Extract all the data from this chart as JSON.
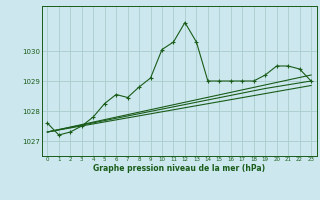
{
  "title": "Graphe pression niveau de la mer (hPa)",
  "bg_color": "#cce8ee",
  "grid_color": "#aacccc",
  "line_color": "#1a5c1a",
  "xlim": [
    -0.5,
    23.5
  ],
  "ylim": [
    1026.5,
    1031.5
  ],
  "yticks": [
    1027,
    1028,
    1029,
    1030
  ],
  "xticks": [
    0,
    1,
    2,
    3,
    4,
    5,
    6,
    7,
    8,
    9,
    10,
    11,
    12,
    13,
    14,
    15,
    16,
    17,
    18,
    19,
    20,
    21,
    22,
    23
  ],
  "series1_x": [
    0,
    1,
    2,
    3,
    4,
    5,
    6,
    7,
    8,
    9,
    10,
    11,
    12,
    13,
    14,
    15,
    16,
    17,
    18,
    19,
    20,
    21,
    22,
    23
  ],
  "series1_y": [
    1027.6,
    1027.2,
    1027.3,
    1027.5,
    1027.8,
    1028.25,
    1028.55,
    1028.45,
    1028.8,
    1029.1,
    1030.05,
    1030.3,
    1030.95,
    1030.3,
    1029.0,
    1029.0,
    1029.0,
    1029.0,
    1029.0,
    1029.2,
    1029.5,
    1029.5,
    1029.4,
    1029.0
  ],
  "series2_x": [
    0,
    23
  ],
  "series2_y": [
    1027.3,
    1029.2
  ],
  "series3_x": [
    0,
    23
  ],
  "series3_y": [
    1027.3,
    1028.85
  ],
  "series4_x": [
    0,
    19,
    23
  ],
  "series4_y": [
    1027.3,
    1028.75,
    1029.0
  ]
}
